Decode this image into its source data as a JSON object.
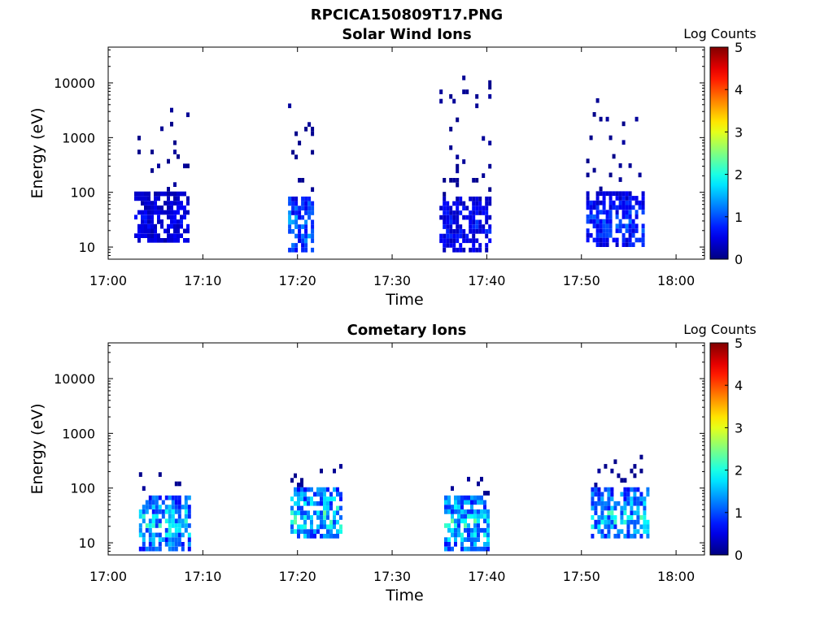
{
  "figure_title": "RPCICA150809T17.PNG",
  "chart_data": [
    {
      "type": "heatmap",
      "title": "Solar Wind Ions",
      "xlabel": "Time",
      "ylabel": "Energy (eV)",
      "yscale": "log",
      "ylim": [
        6,
        45000
      ],
      "xlim": [
        "17:00",
        "18:03"
      ],
      "x_ticks": [
        "17:00",
        "17:10",
        "17:20",
        "17:30",
        "17:40",
        "17:50",
        "18:00"
      ],
      "y_ticks": [
        "10",
        "100",
        "1000",
        "10000"
      ],
      "colorbar": {
        "label": "Log Counts",
        "ticks": [
          "0",
          "1",
          "2",
          "3",
          "4",
          "5"
        ],
        "range": [
          0,
          5
        ],
        "colormap": "jet"
      },
      "bursts": [
        {
          "t_start": "17:02:45",
          "t_end": "17:08:30",
          "e_min": 12,
          "e_max": 3500,
          "peak_log_counts": 0.8
        },
        {
          "t_start": "17:19:00",
          "t_end": "17:21:30",
          "e_min": 8,
          "e_max": 4000,
          "peak_log_counts": 1.8
        },
        {
          "t_start": "17:35:00",
          "t_end": "17:40:30",
          "e_min": 8,
          "e_max": 13000,
          "peak_log_counts": 1.0
        },
        {
          "t_start": "17:50:30",
          "t_end": "17:56:30",
          "e_min": 10,
          "e_max": 6000,
          "peak_log_counts": 1.3
        }
      ]
    },
    {
      "type": "heatmap",
      "title": "Cometary Ions",
      "xlabel": "Time",
      "ylabel": "Energy (eV)",
      "yscale": "log",
      "ylim": [
        6,
        45000
      ],
      "xlim": [
        "17:00",
        "18:03"
      ],
      "x_ticks": [
        "17:00",
        "17:10",
        "17:20",
        "17:30",
        "17:40",
        "17:50",
        "18:00"
      ],
      "y_ticks": [
        "10",
        "100",
        "1000",
        "10000"
      ],
      "colorbar": {
        "label": "Log Counts",
        "ticks": [
          "0",
          "1",
          "2",
          "3",
          "4",
          "5"
        ],
        "range": [
          0,
          5
        ],
        "colormap": "jet"
      },
      "bursts": [
        {
          "t_start": "17:03:15",
          "t_end": "17:08:30",
          "e_min": 7,
          "e_max": 200,
          "peak_log_counts": 2.4
        },
        {
          "t_start": "17:19:15",
          "t_end": "17:24:30",
          "e_min": 12,
          "e_max": 300,
          "peak_log_counts": 2.6
        },
        {
          "t_start": "17:35:30",
          "t_end": "17:40:00",
          "e_min": 7,
          "e_max": 230,
          "peak_log_counts": 2.5
        },
        {
          "t_start": "17:51:00",
          "t_end": "17:57:00",
          "e_min": 12,
          "e_max": 400,
          "peak_log_counts": 2.4
        }
      ]
    }
  ]
}
